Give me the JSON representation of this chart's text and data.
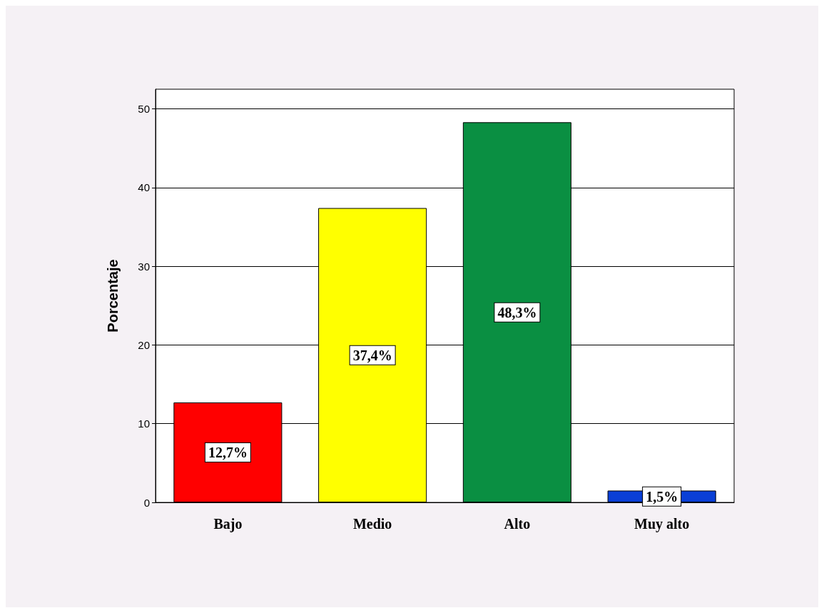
{
  "chart_data": {
    "type": "bar",
    "ylabel": "Porcentaje",
    "categories": [
      "Bajo",
      "Medio",
      "Alto",
      "Muy alto"
    ],
    "values": [
      12.7,
      37.4,
      48.3,
      1.5
    ],
    "colors": [
      "#ff0000",
      "#ffff00",
      "#0a8f42",
      "#0a3fd6"
    ],
    "value_labels": [
      "12,7%",
      "37,4%",
      "48,3%",
      "1,5%"
    ],
    "ylim": [
      0,
      52.5
    ],
    "yticks": [
      0,
      10,
      20,
      30,
      40,
      50
    ],
    "grid": "y"
  }
}
